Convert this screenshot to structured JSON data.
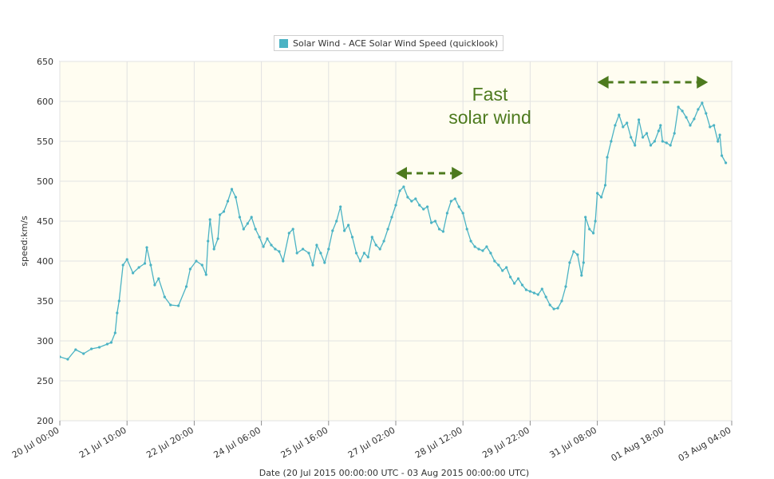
{
  "chart_data": {
    "type": "line",
    "legend": "Solar Wind - ACE Solar Wind Speed (quicklook)",
    "ylabel": "speed:km/s",
    "xlabel": "Date (20 Jul 2015 00:00:00 UTC - 03 Aug 2015 00:00:00 UTC)",
    "ylim": [
      200,
      650
    ],
    "yticks": [
      200,
      250,
      300,
      350,
      400,
      450,
      500,
      550,
      600,
      650
    ],
    "xlim": [
      "2015-07-20T00:00",
      "2015-08-03T04:00"
    ],
    "xticks": [
      {
        "t": "2015-07-20T00:00",
        "label": "20 Jul 00:00"
      },
      {
        "t": "2015-07-21T10:00",
        "label": "21 Jul 10:00"
      },
      {
        "t": "2015-07-22T20:00",
        "label": "22 Jul 20:00"
      },
      {
        "t": "2015-07-24T06:00",
        "label": "24 Jul 06:00"
      },
      {
        "t": "2015-07-25T16:00",
        "label": "25 Jul 16:00"
      },
      {
        "t": "2015-07-27T02:00",
        "label": "27 Jul 02:00"
      },
      {
        "t": "2015-07-28T12:00",
        "label": "28 Jul 12:00"
      },
      {
        "t": "2015-07-29T22:00",
        "label": "29 Jul 22:00"
      },
      {
        "t": "2015-07-31T08:00",
        "label": "31 Jul 08:00"
      },
      {
        "t": "2015-08-01T18:00",
        "label": "01 Aug 18:00"
      },
      {
        "t": "2015-08-03T04:00",
        "label": "03 Aug 04:00"
      }
    ],
    "grid": true,
    "legend_position": "top-center",
    "colors": {
      "series": "#4bb3c4",
      "plot_bg": "#fffdf1",
      "annotation": "#4d7a1e"
    },
    "series": [
      {
        "name": "Solar Wind - ACE Solar Wind Speed (quicklook)",
        "points": [
          [
            "2015-07-20T00:00",
            280
          ],
          [
            "2015-07-20T04:00",
            277
          ],
          [
            "2015-07-20T08:00",
            289
          ],
          [
            "2015-07-20T12:00",
            284
          ],
          [
            "2015-07-20T16:00",
            290
          ],
          [
            "2015-07-20T20:00",
            292
          ],
          [
            "2015-07-21T00:00",
            296
          ],
          [
            "2015-07-21T02:00",
            298
          ],
          [
            "2015-07-21T04:00",
            310
          ],
          [
            "2015-07-21T05:00",
            335
          ],
          [
            "2015-07-21T06:00",
            350
          ],
          [
            "2015-07-21T08:00",
            395
          ],
          [
            "2015-07-21T10:00",
            402
          ],
          [
            "2015-07-21T13:00",
            385
          ],
          [
            "2015-07-21T16:00",
            392
          ],
          [
            "2015-07-21T19:00",
            397
          ],
          [
            "2015-07-21T20:00",
            417
          ],
          [
            "2015-07-21T22:00",
            395
          ],
          [
            "2015-07-22T00:00",
            370
          ],
          [
            "2015-07-22T02:00",
            378
          ],
          [
            "2015-07-22T05:00",
            355
          ],
          [
            "2015-07-22T08:00",
            345
          ],
          [
            "2015-07-22T12:00",
            344
          ],
          [
            "2015-07-22T16:00",
            368
          ],
          [
            "2015-07-22T18:00",
            390
          ],
          [
            "2015-07-22T21:00",
            400
          ],
          [
            "2015-07-23T00:00",
            395
          ],
          [
            "2015-07-23T02:00",
            383
          ],
          [
            "2015-07-23T03:00",
            425
          ],
          [
            "2015-07-23T04:00",
            452
          ],
          [
            "2015-07-23T06:00",
            415
          ],
          [
            "2015-07-23T08:00",
            428
          ],
          [
            "2015-07-23T09:00",
            458
          ],
          [
            "2015-07-23T11:00",
            462
          ],
          [
            "2015-07-23T13:00",
            475
          ],
          [
            "2015-07-23T15:00",
            490
          ],
          [
            "2015-07-23T17:00",
            480
          ],
          [
            "2015-07-23T19:00",
            455
          ],
          [
            "2015-07-23T21:00",
            440
          ],
          [
            "2015-07-23T23:00",
            447
          ],
          [
            "2015-07-24T01:00",
            455
          ],
          [
            "2015-07-24T03:00",
            440
          ],
          [
            "2015-07-24T05:00",
            430
          ],
          [
            "2015-07-24T07:00",
            418
          ],
          [
            "2015-07-24T09:00",
            428
          ],
          [
            "2015-07-24T11:00",
            420
          ],
          [
            "2015-07-24T13:00",
            415
          ],
          [
            "2015-07-24T15:00",
            412
          ],
          [
            "2015-07-24T17:00",
            400
          ],
          [
            "2015-07-24T20:00",
            435
          ],
          [
            "2015-07-24T22:00",
            440
          ],
          [
            "2015-07-25T00:00",
            410
          ],
          [
            "2015-07-25T03:00",
            415
          ],
          [
            "2015-07-25T06:00",
            410
          ],
          [
            "2015-07-25T08:00",
            395
          ],
          [
            "2015-07-25T10:00",
            420
          ],
          [
            "2015-07-25T12:00",
            410
          ],
          [
            "2015-07-25T14:00",
            398
          ],
          [
            "2015-07-25T16:00",
            415
          ],
          [
            "2015-07-25T18:00",
            438
          ],
          [
            "2015-07-25T20:00",
            450
          ],
          [
            "2015-07-25T22:00",
            468
          ],
          [
            "2015-07-26T00:00",
            438
          ],
          [
            "2015-07-26T02:00",
            445
          ],
          [
            "2015-07-26T04:00",
            430
          ],
          [
            "2015-07-26T06:00",
            410
          ],
          [
            "2015-07-26T08:00",
            400
          ],
          [
            "2015-07-26T10:00",
            410
          ],
          [
            "2015-07-26T12:00",
            405
          ],
          [
            "2015-07-26T14:00",
            430
          ],
          [
            "2015-07-26T16:00",
            420
          ],
          [
            "2015-07-26T18:00",
            415
          ],
          [
            "2015-07-26T20:00",
            425
          ],
          [
            "2015-07-26T22:00",
            440
          ],
          [
            "2015-07-27T00:00",
            455
          ],
          [
            "2015-07-27T02:00",
            470
          ],
          [
            "2015-07-27T04:00",
            488
          ],
          [
            "2015-07-27T06:00",
            493
          ],
          [
            "2015-07-27T08:00",
            480
          ],
          [
            "2015-07-27T10:00",
            475
          ],
          [
            "2015-07-27T12:00",
            478
          ],
          [
            "2015-07-27T14:00",
            470
          ],
          [
            "2015-07-27T16:00",
            465
          ],
          [
            "2015-07-27T18:00",
            468
          ],
          [
            "2015-07-27T20:00",
            448
          ],
          [
            "2015-07-27T22:00",
            450
          ],
          [
            "2015-07-28T00:00",
            440
          ],
          [
            "2015-07-28T02:00",
            437
          ],
          [
            "2015-07-28T04:00",
            460
          ],
          [
            "2015-07-28T06:00",
            475
          ],
          [
            "2015-07-28T08:00",
            478
          ],
          [
            "2015-07-28T10:00",
            468
          ],
          [
            "2015-07-28T12:00",
            460
          ],
          [
            "2015-07-28T14:00",
            440
          ],
          [
            "2015-07-28T16:00",
            425
          ],
          [
            "2015-07-28T18:00",
            418
          ],
          [
            "2015-07-28T20:00",
            415
          ],
          [
            "2015-07-28T22:00",
            413
          ],
          [
            "2015-07-29T00:00",
            418
          ],
          [
            "2015-07-29T02:00",
            410
          ],
          [
            "2015-07-29T04:00",
            400
          ],
          [
            "2015-07-29T06:00",
            395
          ],
          [
            "2015-07-29T08:00",
            388
          ],
          [
            "2015-07-29T10:00",
            392
          ],
          [
            "2015-07-29T12:00",
            380
          ],
          [
            "2015-07-29T14:00",
            372
          ],
          [
            "2015-07-29T16:00",
            378
          ],
          [
            "2015-07-29T18:00",
            370
          ],
          [
            "2015-07-29T20:00",
            364
          ],
          [
            "2015-07-29T22:00",
            362
          ],
          [
            "2015-07-30T00:00",
            360
          ],
          [
            "2015-07-30T02:00",
            358
          ],
          [
            "2015-07-30T04:00",
            365
          ],
          [
            "2015-07-30T06:00",
            355
          ],
          [
            "2015-07-30T08:00",
            345
          ],
          [
            "2015-07-30T10:00",
            340
          ],
          [
            "2015-07-30T12:00",
            341
          ],
          [
            "2015-07-30T14:00",
            350
          ],
          [
            "2015-07-30T16:00",
            368
          ],
          [
            "2015-07-30T18:00",
            398
          ],
          [
            "2015-07-30T20:00",
            412
          ],
          [
            "2015-07-30T22:00",
            408
          ],
          [
            "2015-07-31T00:00",
            382
          ],
          [
            "2015-07-31T01:00",
            398
          ],
          [
            "2015-07-31T02:00",
            455
          ],
          [
            "2015-07-31T04:00",
            440
          ],
          [
            "2015-07-31T06:00",
            435
          ],
          [
            "2015-07-31T07:00",
            450
          ],
          [
            "2015-07-31T08:00",
            485
          ],
          [
            "2015-07-31T10:00",
            480
          ],
          [
            "2015-07-31T12:00",
            495
          ],
          [
            "2015-07-31T13:00",
            530
          ],
          [
            "2015-07-31T15:00",
            550
          ],
          [
            "2015-07-31T17:00",
            570
          ],
          [
            "2015-07-31T19:00",
            583
          ],
          [
            "2015-07-31T21:00",
            568
          ],
          [
            "2015-07-31T23:00",
            573
          ],
          [
            "2015-08-01T01:00",
            555
          ],
          [
            "2015-08-01T03:00",
            545
          ],
          [
            "2015-08-01T05:00",
            577
          ],
          [
            "2015-08-01T07:00",
            555
          ],
          [
            "2015-08-01T09:00",
            560
          ],
          [
            "2015-08-01T11:00",
            545
          ],
          [
            "2015-08-01T13:00",
            550
          ],
          [
            "2015-08-01T15:00",
            563
          ],
          [
            "2015-08-01T16:00",
            570
          ],
          [
            "2015-08-01T17:00",
            550
          ],
          [
            "2015-08-01T19:00",
            548
          ],
          [
            "2015-08-01T21:00",
            545
          ],
          [
            "2015-08-01T23:00",
            560
          ],
          [
            "2015-08-02T01:00",
            593
          ],
          [
            "2015-08-02T03:00",
            588
          ],
          [
            "2015-08-02T05:00",
            580
          ],
          [
            "2015-08-02T07:00",
            570
          ],
          [
            "2015-08-02T09:00",
            578
          ],
          [
            "2015-08-02T11:00",
            590
          ],
          [
            "2015-08-02T13:00",
            598
          ],
          [
            "2015-08-02T15:00",
            585
          ],
          [
            "2015-08-02T17:00",
            568
          ],
          [
            "2015-08-02T19:00",
            570
          ],
          [
            "2015-08-02T21:00",
            550
          ],
          [
            "2015-08-02T22:00",
            558
          ],
          [
            "2015-08-02T23:00",
            532
          ],
          [
            "2015-08-03T01:00",
            523
          ]
        ]
      }
    ],
    "annotations": [
      {
        "text_lines": [
          "Fast",
          "solar wind"
        ]
      },
      {
        "type": "double-arrow",
        "from": "2015-07-27T02:00",
        "to": "2015-07-28T12:00",
        "y": 510
      },
      {
        "type": "double-arrow",
        "from": "2015-07-31T08:00",
        "to": "2015-08-02T16:00",
        "y": 624
      }
    ]
  }
}
